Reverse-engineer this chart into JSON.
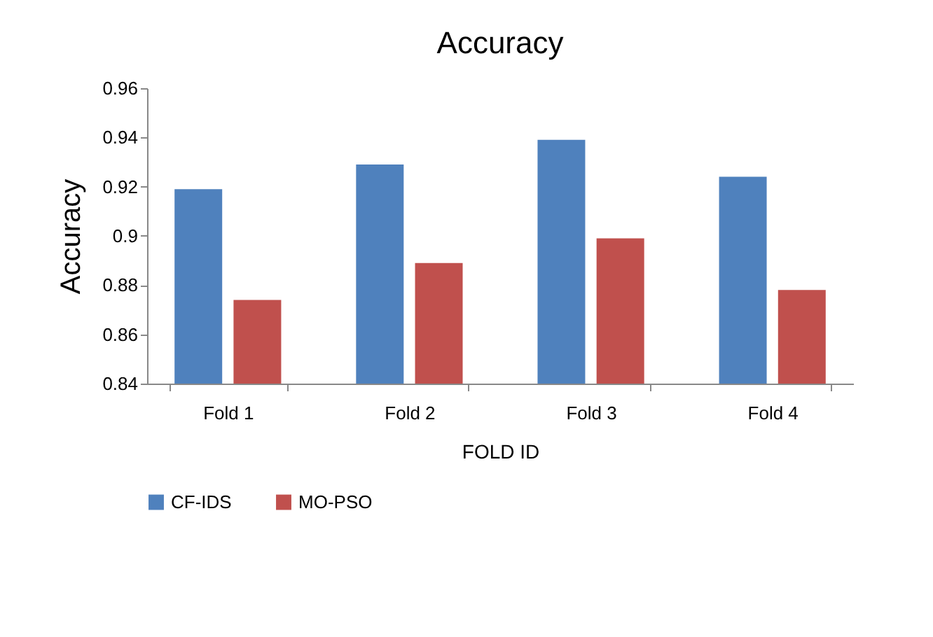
{
  "chart_data": {
    "type": "bar",
    "title": "Accuracy",
    "xlabel": "FOLD ID",
    "ylabel": "Accuracy",
    "categories": [
      "Fold 1",
      "Fold 2",
      "Fold 3",
      "Fold 4"
    ],
    "series": [
      {
        "name": "CF-IDS",
        "color": "#4f81bd",
        "values": [
          0.919,
          0.929,
          0.939,
          0.924
        ]
      },
      {
        "name": "MO-PSO",
        "color": "#c0504d",
        "values": [
          0.874,
          0.889,
          0.899,
          0.878
        ]
      }
    ],
    "ylim": [
      0.84,
      0.96
    ],
    "yticks": [
      0.84,
      0.86,
      0.88,
      0.9,
      0.92,
      0.94,
      0.96
    ],
    "grid": false,
    "legend": "bottom"
  }
}
